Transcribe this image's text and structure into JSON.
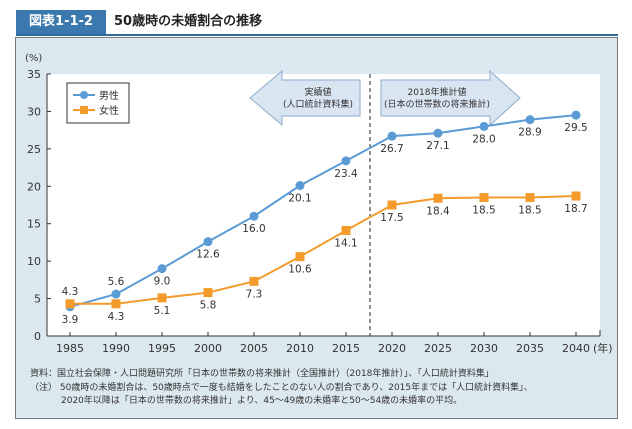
{
  "header": {
    "figure_label": "図表1-1-2",
    "title": "50歳時の未婚割合の推移"
  },
  "chart_data": {
    "type": "line",
    "ylabel": "(%)",
    "xunit": "(年)",
    "ylim": [
      0,
      35
    ],
    "yticks": [
      0,
      5,
      10,
      15,
      20,
      25,
      30,
      35
    ],
    "x": [
      1985,
      1990,
      1995,
      2000,
      2005,
      2010,
      2015,
      2020,
      2025,
      2030,
      2035,
      2040
    ],
    "series": [
      {
        "name": "男性",
        "color": "#5b9bd5",
        "marker": "circle",
        "values": [
          3.9,
          5.6,
          9.0,
          12.6,
          16.0,
          20.1,
          23.4,
          26.7,
          27.1,
          28.0,
          28.9,
          29.5
        ],
        "labels": [
          "3.9",
          "5.6",
          "9.0",
          "12.6",
          "16.0",
          "20.1",
          "23.4",
          "26.7",
          "27.1",
          "28.0",
          "28.9",
          "29.5"
        ]
      },
      {
        "name": "女性",
        "color": "#f39c2c",
        "marker": "square",
        "values": [
          4.3,
          4.3,
          5.1,
          5.8,
          7.3,
          10.6,
          14.1,
          17.5,
          18.4,
          18.5,
          18.5,
          18.7
        ],
        "labels": [
          "4.3",
          "4.3",
          "5.1",
          "5.8",
          "7.3",
          "10.6",
          "14.1",
          "17.5",
          "18.4",
          "18.5",
          "18.5",
          "18.7"
        ]
      }
    ],
    "legend": "top-left",
    "annotations": {
      "actual": [
        "実績値",
        "(人口統計資料集)"
      ],
      "projection": [
        "2018年推計値",
        "(日本の世帯数の将来推計)"
      ]
    }
  },
  "notes": {
    "source": "資料：国立社会保障・人口問題研究所「日本の世帯数の将来推計（全国推計）（2018年推計）」、「人口統計資料集」",
    "note1": "（注） 50歳時の未婚割合は、50歳時点で一度も結婚をしたことのない人の割合であり、2015年までは「人口統計資料集」、",
    "note2": "2020年以降は「日本の世帯数の将来推計」より、45～49歳の未婚率と50～54歳の未婚率の平均。"
  }
}
